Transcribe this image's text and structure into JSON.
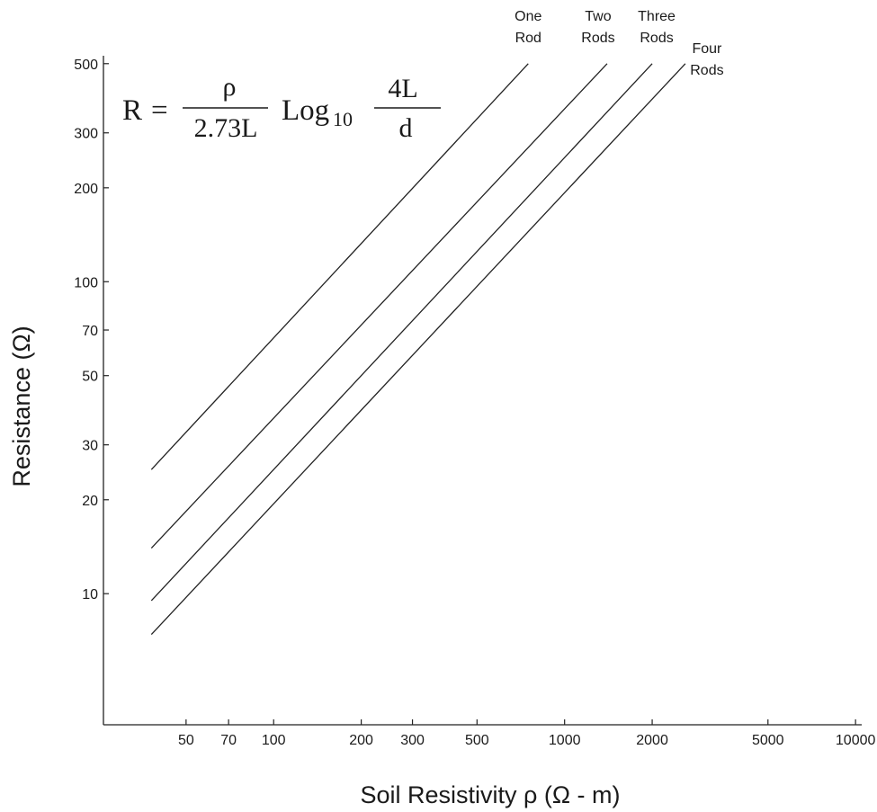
{
  "chart_data": {
    "type": "line",
    "xscale": "log",
    "yscale": "log",
    "xlim": [
      26,
      10500
    ],
    "ylim": [
      3.8,
      530
    ],
    "xlabel": "Soil Resistivity ρ (Ω - m)",
    "ylabel": "Resistance (Ω)",
    "x_ticks": [
      50,
      70,
      100,
      200,
      300,
      500,
      1000,
      2000,
      5000,
      10000
    ],
    "x_tick_labels": [
      "50",
      "70",
      "100",
      "200",
      "300",
      "500",
      "1000",
      "2000",
      "5000",
      "10000"
    ],
    "y_ticks": [
      10,
      20,
      30,
      50,
      70,
      100,
      200,
      300,
      500
    ],
    "y_tick_labels": [
      "10",
      "20",
      "30",
      "50",
      "70",
      "100",
      "200",
      "300",
      "500"
    ],
    "grid": false,
    "formula": {
      "lhs": "R",
      "equals": "=",
      "numerator": "ρ",
      "denominator": "2.73L",
      "log": "Log",
      "log_base": "10",
      "arg_numerator": "4L",
      "arg_denominator": "d"
    },
    "series": [
      {
        "name": "One Rod",
        "label_lines": [
          "One",
          "Rod"
        ],
        "x": [
          38,
          750
        ],
        "y": [
          25,
          500
        ]
      },
      {
        "name": "Two Rods",
        "label_lines": [
          "Two",
          "Rods"
        ],
        "x": [
          38,
          1400
        ],
        "y": [
          14,
          500
        ]
      },
      {
        "name": "Three Rods",
        "label_lines": [
          "Three",
          "Rods"
        ],
        "x": [
          38,
          2000
        ],
        "y": [
          9.5,
          500
        ]
      },
      {
        "name": "Four Rods",
        "label_lines": [
          "Four",
          "Rods"
        ],
        "x": [
          38,
          2600
        ],
        "y": [
          7.4,
          500
        ]
      }
    ]
  }
}
